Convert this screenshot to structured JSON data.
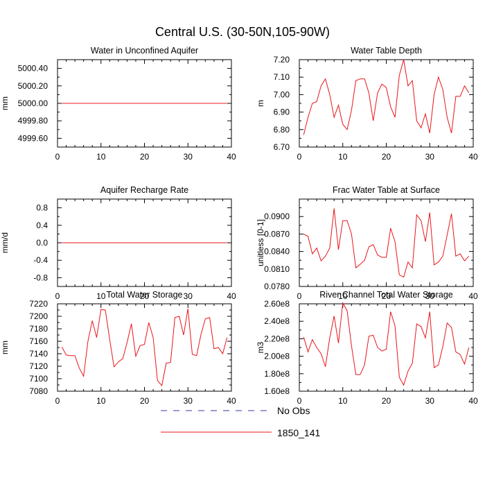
{
  "figure": {
    "title": "Central U.S. (30-50N,105-90W)"
  },
  "legend": [
    {
      "label": "No Obs",
      "color": "#3333aa",
      "dash": "dashed"
    },
    {
      "label": "1850_141",
      "color": "#e8141a",
      "dash": "solid"
    }
  ],
  "chart_data": [
    {
      "type": "line",
      "title": "Water in Unconfined Aquifer",
      "ylabel": "mm",
      "xlim": [
        0,
        40
      ],
      "ylim": [
        4999.5,
        5000.5
      ],
      "xticks": [
        0,
        10,
        20,
        30,
        40
      ],
      "yticks": [
        4999.6,
        4999.8,
        5000.0,
        5000.2,
        5000.4
      ],
      "ytick_labels": [
        "4999.60",
        "4999.80",
        "5000.00",
        "5000.20",
        "5000.40"
      ],
      "series": [
        {
          "name": "1850_141",
          "color": "#e8141a",
          "x": [
            1,
            2,
            3,
            4,
            5,
            6,
            7,
            8,
            9,
            10,
            11,
            12,
            13,
            14,
            15,
            16,
            17,
            18,
            19,
            20,
            21,
            22,
            23,
            24,
            25,
            26,
            27,
            28,
            29,
            30,
            31,
            32,
            33,
            34,
            35,
            36,
            37,
            38,
            39
          ],
          "values": [
            5000,
            5000,
            5000,
            5000,
            5000,
            5000,
            5000,
            5000,
            5000,
            5000,
            5000,
            5000,
            5000,
            5000,
            5000,
            5000,
            5000,
            5000,
            5000,
            5000,
            5000,
            5000,
            5000,
            5000,
            5000,
            5000,
            5000,
            5000,
            5000,
            5000,
            5000,
            5000,
            5000,
            5000,
            5000,
            5000,
            5000,
            5000,
            5000
          ]
        }
      ]
    },
    {
      "type": "line",
      "title": "Water Table Depth",
      "ylabel": "m",
      "xlim": [
        0,
        40
      ],
      "ylim": [
        6.7,
        7.2
      ],
      "xticks": [
        0,
        10,
        20,
        30,
        40
      ],
      "yticks": [
        6.7,
        6.8,
        6.9,
        7.0,
        7.1,
        7.2
      ],
      "ytick_labels": [
        "6.70",
        "6.80",
        "6.90",
        "7.00",
        "7.10",
        "7.20"
      ],
      "series": [
        {
          "name": "1850_141",
          "color": "#e8141a",
          "x": [
            1,
            2,
            3,
            4,
            5,
            6,
            7,
            8,
            9,
            10,
            11,
            12,
            13,
            14,
            15,
            16,
            17,
            18,
            19,
            20,
            21,
            22,
            23,
            24,
            25,
            26,
            27,
            28,
            29,
            30,
            31,
            32,
            33,
            34,
            35,
            36,
            37,
            38,
            39
          ],
          "values": [
            6.77,
            6.87,
            6.95,
            6.96,
            7.05,
            7.09,
            7.0,
            6.87,
            6.94,
            6.83,
            6.8,
            6.91,
            7.08,
            7.09,
            7.09,
            7.01,
            6.85,
            7.01,
            7.06,
            7.04,
            6.93,
            6.87,
            7.11,
            7.2,
            7.05,
            7.08,
            6.85,
            6.81,
            6.89,
            6.78,
            7.0,
            7.1,
            7.03,
            6.87,
            6.78,
            6.99,
            6.99,
            7.05,
            7.01
          ]
        }
      ]
    },
    {
      "type": "line",
      "title": "Aquifer Recharge Rate",
      "ylabel": "mm/d",
      "xlim": [
        0,
        40
      ],
      "ylim": [
        -1,
        1
      ],
      "xticks": [
        0,
        10,
        20,
        30,
        40
      ],
      "yticks": [
        -0.8,
        -0.4,
        0.0,
        0.4,
        0.8
      ],
      "ytick_labels": [
        "-0.8",
        "-0.4",
        "0.0",
        "0.4",
        "0.8"
      ],
      "series": [
        {
          "name": "1850_141",
          "color": "#e8141a",
          "x": [
            1,
            2,
            3,
            4,
            5,
            6,
            7,
            8,
            9,
            10,
            11,
            12,
            13,
            14,
            15,
            16,
            17,
            18,
            19,
            20,
            21,
            22,
            23,
            24,
            25,
            26,
            27,
            28,
            29,
            30,
            31,
            32,
            33,
            34,
            35,
            36,
            37,
            38,
            39
          ],
          "values": [
            0,
            0,
            0,
            0,
            0,
            0,
            0,
            0,
            0,
            0,
            0,
            0,
            0,
            0,
            0,
            0,
            0,
            0,
            0,
            0,
            0,
            0,
            0,
            0,
            0,
            0,
            0,
            0,
            0,
            0,
            0,
            0,
            0,
            0,
            0,
            0,
            0,
            0,
            0
          ]
        }
      ]
    },
    {
      "type": "line",
      "title": "Frac Water Table at Surface",
      "ylabel": "unitless [0-1]",
      "xlim": [
        0,
        40
      ],
      "ylim": [
        0.078,
        0.093
      ],
      "xticks": [
        0,
        10,
        20,
        30,
        40
      ],
      "yticks": [
        0.078,
        0.081,
        0.084,
        0.087,
        0.09
      ],
      "ytick_labels": [
        "0.0780",
        "0.0810",
        "0.0840",
        "0.0870",
        "0.0900"
      ],
      "series": [
        {
          "name": "1850_141",
          "color": "#e8141a",
          "x": [
            1,
            2,
            3,
            4,
            5,
            6,
            7,
            8,
            9,
            10,
            11,
            12,
            13,
            14,
            15,
            16,
            17,
            18,
            19,
            20,
            21,
            22,
            23,
            24,
            25,
            26,
            27,
            28,
            29,
            30,
            31,
            32,
            33,
            34,
            35,
            36,
            37,
            38,
            39
          ],
          "values": [
            0.087,
            0.0866,
            0.0836,
            0.0846,
            0.0824,
            0.0832,
            0.0846,
            0.0914,
            0.0843,
            0.0893,
            0.0893,
            0.087,
            0.0812,
            0.0818,
            0.0825,
            0.0848,
            0.0852,
            0.0834,
            0.083,
            0.083,
            0.088,
            0.0857,
            0.08,
            0.0796,
            0.0822,
            0.0812,
            0.0903,
            0.0893,
            0.0857,
            0.0907,
            0.0817,
            0.0822,
            0.0832,
            0.0868,
            0.0905,
            0.0832,
            0.0836,
            0.0824,
            0.0832
          ]
        }
      ]
    },
    {
      "type": "line",
      "title": "Total Water Storage",
      "ylabel": "mm",
      "xlim": [
        0,
        40
      ],
      "ylim": [
        7080,
        7220
      ],
      "xticks": [
        0,
        10,
        20,
        30,
        40
      ],
      "yticks": [
        7080,
        7100,
        7120,
        7140,
        7160,
        7180,
        7200,
        7220
      ],
      "ytick_labels": [
        "7080",
        "7100",
        "7120",
        "7140",
        "7160",
        "7180",
        "7200",
        "7220"
      ],
      "series": [
        {
          "name": "1850_141",
          "color": "#e8141a",
          "x": [
            1,
            2,
            3,
            4,
            5,
            6,
            7,
            8,
            9,
            10,
            11,
            12,
            13,
            14,
            15,
            16,
            17,
            18,
            19,
            20,
            21,
            22,
            23,
            24,
            25,
            26,
            27,
            28,
            29,
            30,
            31,
            32,
            33,
            34,
            35,
            36,
            37,
            38,
            39
          ],
          "values": [
            7151,
            7138,
            7137,
            7137,
            7117,
            7104,
            7160,
            7193,
            7166,
            7211,
            7210,
            7163,
            7119,
            7127,
            7132,
            7158,
            7188,
            7136,
            7153,
            7155,
            7190,
            7166,
            7097,
            7089,
            7125,
            7126,
            7198,
            7200,
            7170,
            7212,
            7139,
            7137,
            7171,
            7196,
            7198,
            7148,
            7150,
            7140,
            7166
          ]
        }
      ]
    },
    {
      "type": "line",
      "title": "River Channel Total Water Storage",
      "ylabel": "m3",
      "xlim": [
        0,
        40
      ],
      "ylim": [
        160000000,
        260000000
      ],
      "xticks": [
        0,
        10,
        20,
        30,
        40
      ],
      "yticks": [
        160000000,
        180000000,
        200000000,
        220000000,
        240000000,
        260000000
      ],
      "ytick_labels": [
        "1.60e8",
        "1.80e8",
        "2.00e8",
        "2.20e8",
        "2.40e8",
        "2.60e8"
      ],
      "series": [
        {
          "name": "1850_141",
          "color": "#e8141a",
          "x": [
            1,
            2,
            3,
            4,
            5,
            6,
            7,
            8,
            9,
            10,
            11,
            12,
            13,
            14,
            15,
            16,
            17,
            18,
            19,
            20,
            21,
            22,
            23,
            24,
            25,
            26,
            27,
            28,
            29,
            30,
            31,
            32,
            33,
            34,
            35,
            36,
            37,
            38,
            39
          ],
          "values": [
            222000000,
            205000000,
            219000000,
            210000000,
            203000000,
            188000000,
            221000000,
            246000000,
            215000000,
            261000000,
            252000000,
            212000000,
            179000000,
            179000000,
            190000000,
            223000000,
            224000000,
            210000000,
            206000000,
            208000000,
            251000000,
            235000000,
            176000000,
            167000000,
            183000000,
            192000000,
            237000000,
            234000000,
            221000000,
            251000000,
            187000000,
            190000000,
            211000000,
            238000000,
            233000000,
            205000000,
            202000000,
            191000000,
            210000000
          ]
        }
      ]
    }
  ]
}
